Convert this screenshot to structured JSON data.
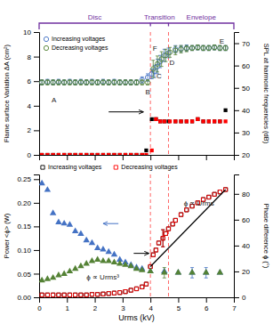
{
  "chart_data": [
    {
      "type": "scatter",
      "ylabel": "Flame surface Variation ΔA (cm²)",
      "y2label": "SPL at harmonic frequencies (dB)",
      "xlim": [
        0,
        7
      ],
      "xticks": [
        0,
        1,
        2,
        3,
        4,
        5,
        6,
        7
      ],
      "ylim": [
        0,
        10
      ],
      "yticks": [
        0,
        2,
        4,
        6,
        8,
        10
      ],
      "y2lim": [
        20,
        75
      ],
      "y2ticks": [
        20,
        30,
        40,
        50,
        60,
        70
      ],
      "tick_labels": "y",
      "legend": "upper left",
      "series": [
        {
          "name": "Increasing voltages",
          "color": "#4472C4",
          "marker": "circle-open",
          "x": [
            0.1,
            0.3,
            0.5,
            0.7,
            0.9,
            1.1,
            1.3,
            1.5,
            1.7,
            1.9,
            2.1,
            2.3,
            2.5,
            2.7,
            2.9,
            3.1,
            3.3,
            3.5,
            3.7,
            3.9,
            4.05,
            4.15,
            4.25,
            4.35,
            4.5,
            4.65,
            4.9,
            5.1,
            5.3,
            5.5,
            5.7,
            5.9,
            6.1,
            6.3,
            6.5,
            6.7
          ],
          "values": [
            5.9,
            5.95,
            5.9,
            5.95,
            5.9,
            5.95,
            5.9,
            5.95,
            5.9,
            5.95,
            5.9,
            5.95,
            5.9,
            5.95,
            5.9,
            5.9,
            5.9,
            5.9,
            6.1,
            6.3,
            6.6,
            6.8,
            7.2,
            7.6,
            8.1,
            8.3,
            8.6,
            8.65,
            8.7,
            8.7,
            8.75,
            8.7,
            8.7,
            8.75,
            8.7,
            8.7
          ],
          "errors": [
            0.2,
            0.2,
            0.2,
            0.2,
            0.2,
            0.2,
            0.2,
            0.2,
            0.2,
            0.2,
            0.2,
            0.2,
            0.2,
            0.2,
            0.2,
            0.2,
            0.2,
            0.2,
            0.25,
            0.3,
            0.4,
            0.5,
            0.6,
            0.5,
            0.5,
            0.4,
            0.3,
            0.25,
            0.25,
            0.2,
            0.2,
            0.2,
            0.2,
            0.2,
            0.2,
            0.2
          ]
        },
        {
          "name": "Decreasing voltages",
          "color": "#548235",
          "marker": "circle-open",
          "x": [
            6.7,
            6.5,
            6.3,
            6.1,
            5.9,
            5.7,
            5.5,
            5.3,
            5.1,
            4.9,
            4.7,
            4.55,
            4.4,
            4.25,
            4.1,
            3.9,
            3.7,
            3.5,
            3.3,
            3.1,
            2.9,
            2.7,
            2.5,
            2.3,
            2.1,
            1.9,
            1.7,
            1.5,
            1.3,
            1.1,
            0.9,
            0.7,
            0.5,
            0.3,
            0.1
          ],
          "values": [
            8.7,
            8.7,
            8.75,
            8.7,
            8.7,
            8.75,
            8.7,
            8.65,
            8.6,
            8.5,
            8.35,
            8.1,
            7.8,
            7.4,
            7.0,
            5.9,
            5.9,
            5.9,
            5.9,
            5.9,
            5.9,
            5.9,
            5.9,
            5.9,
            5.9,
            5.9,
            5.9,
            5.9,
            5.9,
            5.9,
            5.9,
            5.9,
            5.9,
            5.9,
            5.9
          ],
          "errors": [
            0.2,
            0.2,
            0.2,
            0.2,
            0.2,
            0.2,
            0.2,
            0.25,
            0.3,
            0.35,
            0.4,
            0.5,
            0.6,
            0.65,
            0.7,
            0.2,
            0.2,
            0.2,
            0.2,
            0.2,
            0.2,
            0.2,
            0.2,
            0.2,
            0.2,
            0.2,
            0.2,
            0.2,
            0.2,
            0.2,
            0.2,
            0.2,
            0.2,
            0.2,
            0.2
          ]
        },
        {
          "color": "#000000",
          "marker": "square",
          "axis": "y2",
          "x": [
            0.1,
            0.3,
            0.5,
            0.7,
            0.9,
            1.1,
            1.3,
            1.5,
            1.7,
            1.9,
            2.1,
            2.3,
            2.5,
            2.7,
            2.9,
            3.1,
            3.3,
            3.5,
            3.7,
            3.85,
            4.05,
            4.2,
            4.35,
            4.5,
            4.65,
            4.9,
            5.1,
            5.3,
            5.5,
            5.7,
            5.9,
            6.1,
            6.3,
            6.5,
            6.7
          ],
          "values": [
            20,
            20,
            20,
            20,
            20,
            20,
            20,
            20,
            20,
            20,
            20,
            20,
            20,
            20,
            20,
            20,
            20,
            20,
            20,
            22,
            36,
            36,
            35,
            35,
            35,
            35,
            35,
            35,
            35,
            36,
            35,
            35,
            35,
            35,
            40
          ]
        },
        {
          "color": "#FF0000",
          "marker": "square",
          "axis": "y2",
          "x": [
            6.7,
            6.5,
            6.3,
            6.1,
            5.9,
            5.7,
            5.5,
            5.3,
            5.1,
            4.9,
            4.7,
            4.5,
            4.35,
            4.2,
            4.05,
            3.85,
            3.7,
            3.5,
            3.3,
            3.1,
            2.9,
            2.7,
            2.5,
            2.3,
            2.1,
            1.9,
            1.7,
            1.5,
            1.3,
            1.1,
            0.9,
            0.7,
            0.5,
            0.3,
            0.1
          ],
          "values": [
            35,
            35,
            35,
            35,
            35,
            36,
            35,
            35,
            35,
            35,
            35,
            35,
            35,
            36,
            22,
            20,
            20,
            20,
            20,
            20,
            20,
            20,
            20,
            20,
            20,
            20,
            20,
            20,
            20,
            20,
            20,
            20,
            20,
            20,
            20
          ]
        }
      ],
      "annotations": [
        {
          "text": "A",
          "x": 0.45,
          "y": 4.3
        },
        {
          "text": "B",
          "x": 3.82,
          "y": 4.9
        },
        {
          "text": "C",
          "x": 4.22,
          "y": 6.2
        },
        {
          "text": "D",
          "x": 4.68,
          "y": 7.3
        },
        {
          "text": "E",
          "x": 6.48,
          "y": 9.05
        },
        {
          "text": "F",
          "x": 4.08,
          "y": 8.5
        }
      ],
      "arrows": [
        {
          "x": [
            2.5,
            3.75
          ],
          "y": 3.5,
          "color": "#000000"
        }
      ],
      "vlines": [
        {
          "x": 4.0,
          "color": "#FF6666",
          "line_style": "dashed"
        },
        {
          "x": 4.65,
          "color": "#FF6666",
          "line_style": "dashed"
        }
      ],
      "regions": [
        {
          "label": "Disc",
          "color": "#7030A0"
        },
        {
          "label": "Transition",
          "color": "#7030A0"
        },
        {
          "label": "Envelope",
          "color": "#7030A0"
        }
      ]
    },
    {
      "type": "scatter",
      "xlabel": "Urms (kV)",
      "ylabel": "Power <ϕ> (W)",
      "y2label": "Phase difference ϕ (°)",
      "xlim": [
        0,
        7
      ],
      "xticks": [
        0,
        1,
        2,
        3,
        4,
        5,
        6,
        7
      ],
      "ylim": [
        0,
        0.26
      ],
      "yticks": [
        {
          "value": 0,
          "label": "0.00"
        },
        0.05,
        {
          "value": 0.1,
          "label": "0.10"
        },
        0.15,
        {
          "value": 0.2,
          "label": "0.20"
        },
        0.25
      ],
      "y2lim": [
        0,
        95
      ],
      "y2ticks": [
        0,
        20,
        40,
        60,
        80
      ],
      "legend": "top",
      "series": [
        {
          "name": "Increasing voltages",
          "color": "#000000",
          "marker": "square-open",
          "x": [
            0.1,
            0.3,
            0.5,
            0.7,
            0.9,
            1.1,
            1.3,
            1.5,
            1.7,
            1.9,
            2.1,
            2.3,
            2.5,
            2.7,
            2.9,
            3.1,
            3.3,
            3.5,
            3.7,
            3.85,
            4.0,
            4.1,
            4.2,
            4.3,
            4.45,
            4.55,
            4.65,
            4.8,
            4.9,
            5.1,
            5.3,
            5.5,
            5.7,
            5.9,
            6.1,
            6.3,
            6.5,
            6.7
          ],
          "values": [
            0.005,
            0.005,
            0.005,
            0.005,
            0.005,
            0.005,
            0.005,
            0.005,
            0.005,
            0.006,
            0.006,
            0.007,
            0.008,
            0.009,
            0.01,
            0.012,
            0.015,
            0.018,
            0.022,
            0.028,
            0.065,
            0.09,
            0.1,
            0.115,
            0.125,
            0.135,
            0.145,
            0.155,
            0.163,
            0.175,
            0.185,
            0.193,
            0.2,
            0.207,
            0.212,
            0.218,
            0.223,
            0.228
          ],
          "errors": [
            null,
            null,
            null,
            null,
            null,
            null,
            null,
            null,
            null,
            null,
            null,
            null,
            null,
            null,
            null,
            null,
            null,
            null,
            null,
            null,
            null,
            null,
            null,
            null,
            0.018,
            null,
            null,
            null,
            null,
            null,
            null,
            null,
            null,
            null,
            null,
            null,
            null,
            null
          ]
        },
        {
          "name": "Decreasing voltages",
          "color": "#FF0000",
          "marker": "square-open",
          "x": [
            6.7,
            6.5,
            6.3,
            6.1,
            5.9,
            5.7,
            5.5,
            5.3,
            5.1,
            4.9,
            4.8,
            4.65,
            4.55,
            4.45,
            4.3,
            4.2,
            4.1,
            4.0,
            3.85,
            3.7,
            3.5,
            3.3,
            3.1,
            2.9,
            2.7,
            2.5,
            2.3,
            2.1,
            1.9,
            1.7,
            1.5,
            1.3,
            1.1,
            0.9,
            0.7,
            0.5,
            0.3,
            0.1
          ],
          "values": [
            0.228,
            0.223,
            0.218,
            0.212,
            0.207,
            0.2,
            0.193,
            0.185,
            0.175,
            0.163,
            0.155,
            0.145,
            0.135,
            0.125,
            0.115,
            0.1,
            0.09,
            0.065,
            0.028,
            0.022,
            0.018,
            0.015,
            0.012,
            0.01,
            0.009,
            0.008,
            0.007,
            0.006,
            0.006,
            0.005,
            0.005,
            0.005,
            0.005,
            0.005,
            0.005,
            0.005,
            0.005,
            0.005
          ],
          "errors": [
            null,
            null,
            null,
            null,
            null,
            null,
            null,
            null,
            null,
            null,
            null,
            null,
            null,
            0.018,
            null,
            null,
            null,
            null,
            null,
            null,
            null,
            null,
            null,
            null,
            null,
            null,
            null,
            null,
            null,
            null,
            null,
            null,
            null,
            null,
            null,
            null,
            null,
            null
          ]
        },
        {
          "color": "#4472C4",
          "marker": "triangle",
          "axis": "y2",
          "x": [
            0.1,
            0.3,
            0.5,
            0.7,
            0.9,
            1.1,
            1.3,
            1.5,
            1.7,
            1.9,
            2.1,
            2.3,
            2.5,
            2.7,
            2.9,
            3.1,
            3.3,
            3.5,
            3.7,
            4.0,
            4.5,
            5.0,
            5.5,
            6.0,
            6.5
          ],
          "values": [
            88,
            83,
            65,
            58,
            57,
            56,
            51,
            49,
            44,
            42,
            38,
            37,
            35,
            33,
            29,
            27,
            25,
            23,
            22,
            20,
            20,
            19,
            19,
            19,
            19
          ],
          "errors": [
            null,
            null,
            null,
            null,
            null,
            null,
            null,
            null,
            null,
            null,
            null,
            null,
            null,
            null,
            null,
            null,
            null,
            null,
            null,
            null,
            null,
            null,
            4,
            4,
            null
          ]
        },
        {
          "color": "#548235",
          "marker": "triangle",
          "axis": "y2",
          "x": [
            6.5,
            6.0,
            5.5,
            5.0,
            4.5,
            4.0,
            3.7,
            3.5,
            3.3,
            3.1,
            2.9,
            2.7,
            2.5,
            2.3,
            2.1,
            1.9,
            1.7,
            1.5,
            1.3,
            1.1,
            0.9,
            0.7,
            0.5,
            0.3,
            0.1
          ],
          "values": [
            19,
            19,
            19,
            19,
            19,
            20,
            21,
            22,
            24,
            25,
            26,
            27,
            28,
            28,
            29,
            28,
            26,
            24,
            22,
            20,
            18,
            17,
            15,
            14,
            13
          ],
          "errors": [
            null,
            null,
            null,
            null,
            4,
            null,
            null,
            null,
            null,
            null,
            null,
            null,
            null,
            null,
            null,
            null,
            null,
            null,
            null,
            null,
            null,
            null,
            null,
            null,
            null
          ]
        },
        {
          "type": "line",
          "color": "#000000",
          "x": [
            4.0,
            6.7
          ],
          "values": [
            0.065,
            0.228
          ]
        }
      ],
      "annotations": [
        {
          "text": "ϕ ∝ Urms",
          "x": 5.2,
          "y": 0.195
        },
        {
          "text": "ϕ ∝ Urms³",
          "x": 1.7,
          "y": 0.038
        }
      ],
      "arrows": [
        {
          "x": [
            3.4,
            3.95
          ],
          "y": 0.093,
          "color": "#000000"
        },
        {
          "x": [
            2.85,
            2.3
          ],
          "y": 57,
          "axis": "y2",
          "color": "#4472C4"
        }
      ],
      "vlines": [
        {
          "x": 4.0,
          "color": "#FF6666",
          "line_style": "dashed"
        },
        {
          "x": 4.65,
          "color": "#FF6666",
          "line_style": "dashed"
        }
      ]
    }
  ]
}
